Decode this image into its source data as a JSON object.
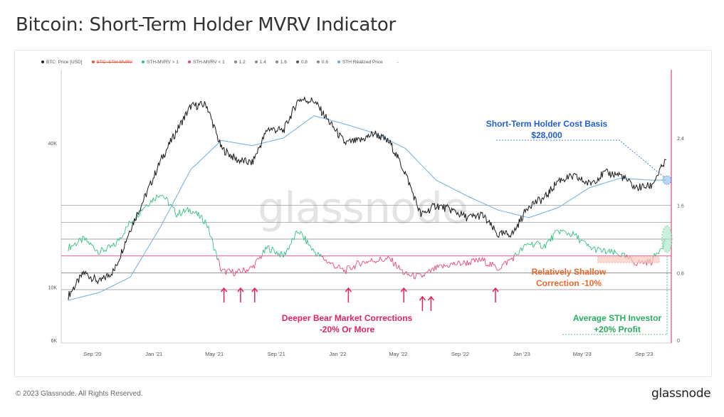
{
  "title": "Bitcoin: Short-Term Holder MVRV Indicator",
  "watermark": "glassnode",
  "footer": {
    "copyright": "© 2023 Glassnode. All Rights Reserved.",
    "logo": "glassnode"
  },
  "legend": [
    {
      "label": "BTC: Price [USD]",
      "color": "#222222",
      "strike": false
    },
    {
      "label": "BTC: STH-MVRV",
      "color": "#e8593a",
      "strike": true
    },
    {
      "label": "STH-MVRV > 1",
      "color": "#2ec27e",
      "strike": false
    },
    {
      "label": "STH-MVRV < 1",
      "color": "#e8467c",
      "strike": false
    },
    {
      "label": "1.2",
      "color": "#888888",
      "strike": false
    },
    {
      "label": "1.4",
      "color": "#888888",
      "strike": false
    },
    {
      "label": "1.6",
      "color": "#888888",
      "strike": false
    },
    {
      "label": "0.8",
      "color": "#555555",
      "strike": false
    },
    {
      "label": "0.6",
      "color": "#888888",
      "strike": false
    },
    {
      "label": "STH Realized Price",
      "color": "#6aaee6",
      "strike": false
    },
    {
      "label": "-",
      "color": "#ffffff",
      "strike": false
    }
  ],
  "annotations": {
    "cost_basis": {
      "line1": "Short-Term Holder Cost Basis",
      "line2": "$28,000",
      "color": "#1f5fd6"
    },
    "shallow": {
      "line1": "Relatively Shallow",
      "line2": "Correction -10%",
      "color": "#e8692b"
    },
    "deeper": {
      "line1": "Deeper Bear Market Corrections",
      "line2": "-20% Or More",
      "color": "#e0245e"
    },
    "average": {
      "line1": "Average STH Investor",
      "line2": "+20% Profit",
      "color": "#27ae60"
    }
  },
  "chart_data": {
    "type": "line",
    "x_ticks": [
      "Sep '20",
      "Jan '21",
      "May '21",
      "Sep '21",
      "Jan '22",
      "May '22",
      "Sep '22",
      "Jan '23",
      "May '23",
      "Sep '23"
    ],
    "y_left": {
      "ticks": [
        "6K",
        "10K",
        "40K"
      ],
      "scale": "log"
    },
    "y_right": {
      "ticks": [
        "0",
        "0.8",
        "1.6",
        "2.4"
      ],
      "range": [
        0,
        2.4
      ]
    },
    "ratio_levels": [
      1.6,
      1.4,
      1.2,
      1.0,
      0.8,
      0.6
    ],
    "series": [
      {
        "name": "BTC: Price [USD]",
        "axis": "left",
        "color": "#222222",
        "dates": [
          "2020-07",
          "2020-08",
          "2020-09",
          "2020-10",
          "2020-11",
          "2020-12",
          "2021-01",
          "2021-02",
          "2021-03",
          "2021-04",
          "2021-05",
          "2021-06",
          "2021-07",
          "2021-08",
          "2021-09",
          "2021-10",
          "2021-11",
          "2021-12",
          "2022-01",
          "2022-02",
          "2022-03",
          "2022-04",
          "2022-05",
          "2022-06",
          "2022-07",
          "2022-08",
          "2022-09",
          "2022-10",
          "2022-11",
          "2022-12",
          "2023-01",
          "2023-02",
          "2023-03",
          "2023-04",
          "2023-05",
          "2023-06",
          "2023-07",
          "2023-08",
          "2023-09",
          "2023-10"
        ],
        "values": [
          9200,
          11500,
          10500,
          11800,
          17500,
          24000,
          34000,
          45000,
          57000,
          58000,
          38000,
          34000,
          33000,
          46000,
          45000,
          61000,
          60000,
          49000,
          40000,
          41000,
          44000,
          40000,
          30000,
          20000,
          22000,
          21000,
          19500,
          20000,
          16500,
          16800,
          22000,
          23500,
          28000,
          29000,
          27000,
          30000,
          29500,
          26000,
          26500,
          34000
        ]
      },
      {
        "name": "STH Realized Price",
        "axis": "left",
        "color": "#6aaee6",
        "dates": [
          "2020-07",
          "2020-09",
          "2020-11",
          "2021-01",
          "2021-03",
          "2021-05",
          "2021-07",
          "2021-09",
          "2021-11",
          "2022-01",
          "2022-03",
          "2022-05",
          "2022-07",
          "2022-09",
          "2022-11",
          "2023-01",
          "2023-03",
          "2023-05",
          "2023-07",
          "2023-09",
          "2023-10"
        ],
        "values": [
          8800,
          9500,
          11000,
          18000,
          31000,
          41000,
          39000,
          42000,
          52000,
          48000,
          44000,
          38000,
          28000,
          24000,
          21000,
          19500,
          21500,
          26000,
          28500,
          28000,
          28000
        ]
      },
      {
        "name": "BTC: STH-MVRV",
        "axis": "right",
        "color": "#2ec27e",
        "dates": [
          "2020-07",
          "2020-08",
          "2020-09",
          "2020-10",
          "2020-11",
          "2020-12",
          "2021-01",
          "2021-02",
          "2021-03",
          "2021-04",
          "2021-05",
          "2021-06",
          "2021-07",
          "2021-08",
          "2021-09",
          "2021-10",
          "2021-11",
          "2021-12",
          "2022-01",
          "2022-02",
          "2022-03",
          "2022-04",
          "2022-05",
          "2022-06",
          "2022-07",
          "2022-08",
          "2022-09",
          "2022-10",
          "2022-11",
          "2022-12",
          "2023-01",
          "2023-02",
          "2023-03",
          "2023-04",
          "2023-05",
          "2023-06",
          "2023-07",
          "2023-08",
          "2023-09",
          "2023-10"
        ],
        "values": [
          1.1,
          1.2,
          1.05,
          1.12,
          1.4,
          1.6,
          1.75,
          1.5,
          1.55,
          1.4,
          0.82,
          0.8,
          0.86,
          1.1,
          1.0,
          1.3,
          1.05,
          0.92,
          0.82,
          0.92,
          0.95,
          0.96,
          0.78,
          0.75,
          0.85,
          0.9,
          0.92,
          0.95,
          0.85,
          0.98,
          1.15,
          1.12,
          1.3,
          1.25,
          1.1,
          1.05,
          1.02,
          0.92,
          0.93,
          1.2
        ]
      }
    ]
  }
}
